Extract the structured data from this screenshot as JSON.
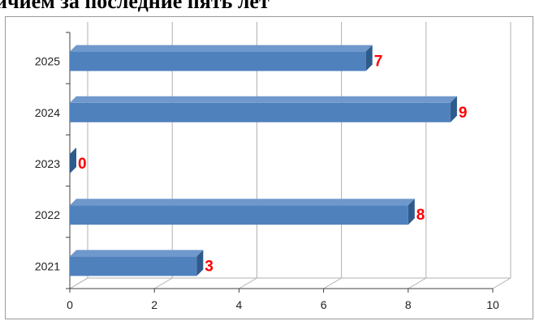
{
  "title": "ичием за последние пять лет",
  "colors": {
    "bar_front": "#4f81bd",
    "bar_top": "#6f98cc",
    "bar_side": "#2f5a8c",
    "label": "#ff0000",
    "grid": "#b0b0b0",
    "axis": "#404040"
  },
  "chart_data": {
    "type": "bar",
    "orientation": "horizontal",
    "categories": [
      "2021",
      "2022",
      "2023",
      "2024",
      "2025"
    ],
    "values": [
      3,
      8,
      0,
      9,
      7
    ],
    "xlim": [
      0,
      10
    ],
    "xticks": [
      0,
      2,
      4,
      6,
      8,
      10
    ],
    "title": "ичием за последние пять лет",
    "xlabel": "",
    "ylabel": "",
    "grid": true,
    "data_labels": true,
    "style": "3d"
  }
}
